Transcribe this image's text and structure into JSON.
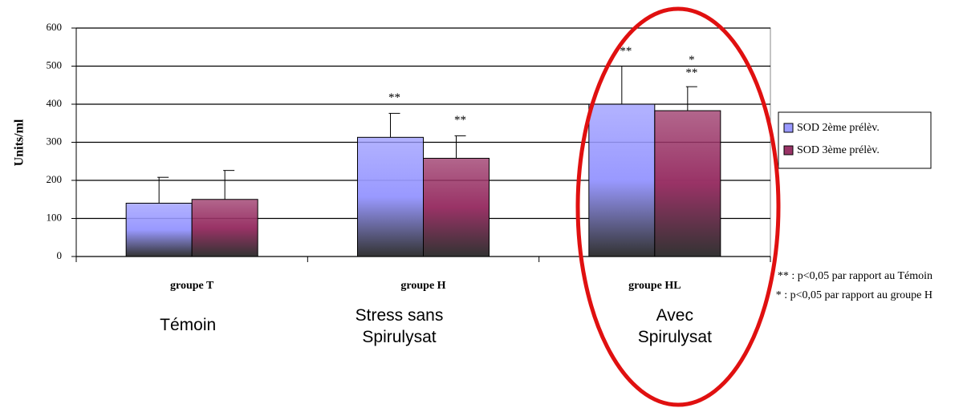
{
  "chart_data": {
    "type": "bar",
    "ylabel": "Units/ml",
    "categories": [
      "groupe T",
      "groupe H",
      "groupe HL"
    ],
    "subcategories": [
      "Témoin",
      "Stress sans\nSpirulysat",
      "Avec\nSpirulysat"
    ],
    "series": [
      {
        "name": "SOD 2ème prélèv.",
        "color": "#9999ff",
        "values": [
          140,
          313,
          400
        ],
        "errors": [
          68,
          63,
          100
        ],
        "labels": [
          null,
          "**",
          "**"
        ]
      },
      {
        "name": "SOD 3ème prélèv.",
        "color": "#993366",
        "values": [
          150,
          258,
          383
        ],
        "errors": [
          76,
          59,
          63
        ],
        "labels": [
          null,
          "**",
          "*\n**"
        ]
      }
    ],
    "ylim": [
      0,
      600
    ],
    "yticks": [
      0,
      100,
      200,
      300,
      400,
      500,
      600
    ],
    "grid": true,
    "legend": "right",
    "footnotes": [
      "** : p<0,05 par rapport au Témoin",
      "* : p<0,05 par rapport au groupe H"
    ]
  }
}
